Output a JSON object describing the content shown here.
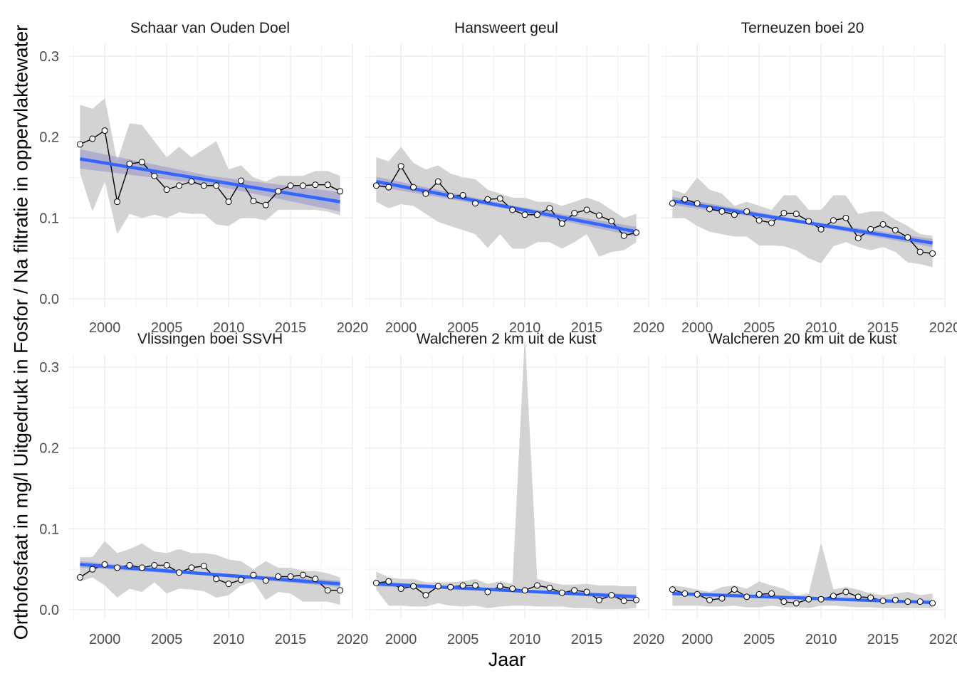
{
  "chart_data": {
    "type": "line",
    "xlabel": "Jaar",
    "ylabel": "Orthofosfaat in mg/l Uitgedrukt in Fosfor / Na filtratie in oppervlaktewater",
    "xlim": [
      1997,
      2020
    ],
    "ylim": [
      0,
      0.32
    ],
    "x_ticks": [
      2000,
      2005,
      2010,
      2015,
      2020
    ],
    "y_ticks": [
      0.0,
      0.1,
      0.2,
      0.3
    ],
    "y_tick_labels": [
      "0.0",
      "0.1",
      "0.2",
      "0.3"
    ],
    "grid": true,
    "colors": {
      "trend": "#3366FF",
      "band": "#d3d3d3",
      "confidence": "#9999cc",
      "line": "#000000",
      "point_fill": "#ffffff"
    },
    "years": [
      1998,
      1999,
      2000,
      2001,
      2002,
      2003,
      2004,
      2005,
      2006,
      2007,
      2008,
      2009,
      2010,
      2011,
      2012,
      2013,
      2014,
      2015,
      2016,
      2017,
      2018,
      2019
    ],
    "panels": [
      {
        "title": "Schaar van Ouden Doel",
        "values": [
          0.191,
          0.198,
          0.208,
          0.12,
          0.167,
          0.169,
          0.152,
          0.135,
          0.14,
          0.145,
          0.14,
          0.14,
          0.12,
          0.146,
          0.121,
          0.116,
          0.133,
          0.14,
          0.14,
          0.141,
          0.141,
          0.133
        ],
        "band_high": [
          0.24,
          0.235,
          0.248,
          0.17,
          0.217,
          0.215,
          0.195,
          0.175,
          0.188,
          0.175,
          0.185,
          0.195,
          0.16,
          0.165,
          0.15,
          0.145,
          0.152,
          0.152,
          0.152,
          0.158,
          0.158,
          0.152
        ],
        "band_low": [
          0.155,
          0.108,
          0.145,
          0.08,
          0.105,
          0.1,
          0.104,
          0.1,
          0.107,
          0.105,
          0.105,
          0.092,
          0.09,
          0.1,
          0.1,
          0.097,
          0.11,
          0.11,
          0.11,
          0.11,
          0.108,
          0.103
        ],
        "trend": [
          0.173,
          0.12
        ],
        "conf": 0.012
      },
      {
        "title": "Hansweert geul",
        "values": [
          0.14,
          0.138,
          0.164,
          0.138,
          0.13,
          0.145,
          0.127,
          0.128,
          0.118,
          0.123,
          0.124,
          0.11,
          0.104,
          0.104,
          0.112,
          0.093,
          0.106,
          0.11,
          0.103,
          0.096,
          0.078,
          0.082
        ],
        "band_high": [
          0.175,
          0.17,
          0.188,
          0.168,
          0.16,
          0.165,
          0.155,
          0.15,
          0.148,
          0.135,
          0.13,
          0.125,
          0.125,
          0.12,
          0.12,
          0.115,
          0.12,
          0.125,
          0.12,
          0.11,
          0.1,
          0.105
        ],
        "band_low": [
          0.12,
          0.112,
          0.117,
          0.115,
          0.105,
          0.095,
          0.09,
          0.085,
          0.08,
          0.063,
          0.08,
          0.062,
          0.062,
          0.07,
          0.07,
          0.062,
          0.07,
          0.08,
          0.052,
          0.058,
          0.06,
          0.07
        ],
        "trend": [
          0.145,
          0.083
        ],
        "conf": 0.006
      },
      {
        "title": "Terneuzen boei 20",
        "values": [
          0.118,
          0.123,
          0.118,
          0.111,
          0.108,
          0.104,
          0.108,
          0.097,
          0.094,
          0.106,
          0.105,
          0.096,
          0.086,
          0.097,
          0.1,
          0.075,
          0.086,
          0.092,
          0.085,
          0.076,
          0.058,
          0.056
        ],
        "band_high": [
          0.135,
          0.13,
          0.15,
          0.135,
          0.13,
          0.115,
          0.12,
          0.115,
          0.11,
          0.128,
          0.128,
          0.11,
          0.11,
          0.128,
          0.128,
          0.105,
          0.108,
          0.108,
          0.098,
          0.09,
          0.08,
          0.078
        ],
        "band_low": [
          0.1,
          0.1,
          0.09,
          0.083,
          0.08,
          0.077,
          0.077,
          0.066,
          0.066,
          0.065,
          0.06,
          0.05,
          0.044,
          0.065,
          0.07,
          0.064,
          0.06,
          0.064,
          0.058,
          0.045,
          0.043,
          0.039
        ],
        "trend": [
          0.121,
          0.069
        ],
        "conf": 0.005
      },
      {
        "title": "Vlissingen boei SSVH",
        "values": [
          0.04,
          0.05,
          0.056,
          0.052,
          0.055,
          0.052,
          0.055,
          0.055,
          0.046,
          0.052,
          0.054,
          0.038,
          0.032,
          0.037,
          0.043,
          0.036,
          0.041,
          0.041,
          0.043,
          0.038,
          0.024,
          0.024
        ],
        "band_high": [
          0.065,
          0.065,
          0.085,
          0.07,
          0.075,
          0.082,
          0.072,
          0.07,
          0.075,
          0.07,
          0.07,
          0.068,
          0.062,
          0.06,
          0.05,
          0.06,
          0.052,
          0.052,
          0.048,
          0.048,
          0.045,
          0.04
        ],
        "band_low": [
          0.035,
          0.04,
          0.03,
          0.015,
          0.026,
          0.022,
          0.034,
          0.02,
          0.026,
          0.025,
          0.023,
          0.015,
          0.018,
          0.03,
          0.035,
          0.012,
          0.022,
          0.02,
          0.01,
          0.01,
          0.01,
          0.006
        ],
        "trend": [
          0.056,
          0.032
        ],
        "conf": 0.004
      },
      {
        "title": "Walcheren 2 km uit de kust",
        "values": [
          0.033,
          0.035,
          0.026,
          0.029,
          0.018,
          0.029,
          0.028,
          0.03,
          0.03,
          0.022,
          0.029,
          0.026,
          0.024,
          0.03,
          0.027,
          0.021,
          0.024,
          0.022,
          0.012,
          0.018,
          0.011,
          0.012
        ],
        "band_high": [
          0.047,
          0.04,
          0.038,
          0.038,
          0.034,
          0.034,
          0.034,
          0.035,
          0.038,
          0.032,
          0.035,
          0.032,
          0.34,
          0.038,
          0.034,
          0.031,
          0.031,
          0.032,
          0.03,
          0.03,
          0.029,
          0.029
        ],
        "band_low": [
          0.025,
          0.005,
          0.005,
          0.004,
          0.004,
          0.008,
          0.005,
          0.004,
          0.005,
          0.002,
          0.004,
          0.005,
          0.005,
          0.004,
          0.004,
          0.004,
          0.002,
          0.002,
          0.001,
          0.001,
          0.001,
          0.002
        ],
        "trend": [
          0.032,
          0.016
        ],
        "conf": 0.003
      },
      {
        "title": "Walcheren 20 km uit de kust",
        "values": [
          0.025,
          0.02,
          0.019,
          0.012,
          0.014,
          0.025,
          0.016,
          0.019,
          0.02,
          0.01,
          0.008,
          0.013,
          0.013,
          0.017,
          0.022,
          0.016,
          0.015,
          0.011,
          0.012,
          0.01,
          0.01,
          0.008
        ],
        "band_high": [
          0.03,
          0.028,
          0.025,
          0.022,
          0.028,
          0.03,
          0.026,
          0.035,
          0.03,
          0.026,
          0.018,
          0.02,
          0.083,
          0.025,
          0.028,
          0.025,
          0.02,
          0.018,
          0.02,
          0.022,
          0.018,
          0.02
        ],
        "band_low": [
          0.005,
          0.005,
          0.005,
          0.004,
          0.004,
          0.005,
          0.003,
          0.003,
          0.005,
          0.003,
          0.003,
          0.002,
          0.005,
          0.005,
          0.004,
          0.003,
          0.003,
          0.002,
          0.002,
          0.002,
          0.002,
          0.002
        ],
        "trend": [
          0.02,
          0.009
        ],
        "conf": 0.002
      }
    ]
  }
}
